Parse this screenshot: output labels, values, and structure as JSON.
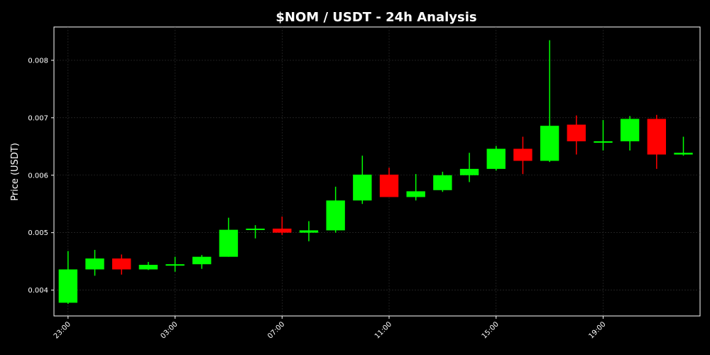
{
  "chart_data": {
    "type": "candlestick",
    "title": "$NOM / USDT - 24h Analysis",
    "xlabel": "",
    "ylabel": "Price (USDT)",
    "ylim": [
      0.00355,
      0.00858
    ],
    "y_ticks": [
      0.004,
      0.005,
      0.006,
      0.007,
      0.008
    ],
    "y_tick_labels": [
      "0.004",
      "0.005",
      "0.006",
      "0.007",
      "0.008"
    ],
    "x_tick_labels": [
      "23:00",
      "03:00",
      "07:00",
      "11:00",
      "15:00",
      "19:00"
    ],
    "x_tick_positions": [
      0,
      4,
      8,
      12,
      16,
      20
    ],
    "grid": true,
    "colors": {
      "background": "#000000",
      "up": "#00ff00",
      "down": "#ff0000",
      "axes": "#ffffff",
      "grid": "#333333"
    },
    "candles": [
      {
        "open": 0.00378,
        "high": 0.00468,
        "low": 0.00376,
        "close": 0.00436
      },
      {
        "open": 0.00436,
        "high": 0.0047,
        "low": 0.00425,
        "close": 0.00455
      },
      {
        "open": 0.00455,
        "high": 0.00462,
        "low": 0.00427,
        "close": 0.00436
      },
      {
        "open": 0.00436,
        "high": 0.00449,
        "low": 0.00435,
        "close": 0.00444
      },
      {
        "open": 0.00443,
        "high": 0.00458,
        "low": 0.00432,
        "close": 0.00445
      },
      {
        "open": 0.00445,
        "high": 0.00461,
        "low": 0.00437,
        "close": 0.00458
      },
      {
        "open": 0.00458,
        "high": 0.00526,
        "low": 0.00458,
        "close": 0.00505
      },
      {
        "open": 0.00505,
        "high": 0.00513,
        "low": 0.0049,
        "close": 0.00507
      },
      {
        "open": 0.00507,
        "high": 0.00528,
        "low": 0.00496,
        "close": 0.005
      },
      {
        "open": 0.005,
        "high": 0.0052,
        "low": 0.00485,
        "close": 0.00504
      },
      {
        "open": 0.00504,
        "high": 0.0058,
        "low": 0.005,
        "close": 0.00556
      },
      {
        "open": 0.00556,
        "high": 0.00634,
        "low": 0.0055,
        "close": 0.00601
      },
      {
        "open": 0.00601,
        "high": 0.00613,
        "low": 0.00562,
        "close": 0.00562
      },
      {
        "open": 0.00562,
        "high": 0.00602,
        "low": 0.00556,
        "close": 0.00572
      },
      {
        "open": 0.00574,
        "high": 0.00606,
        "low": 0.00571,
        "close": 0.006
      },
      {
        "open": 0.006,
        "high": 0.00639,
        "low": 0.00588,
        "close": 0.00611
      },
      {
        "open": 0.00611,
        "high": 0.00651,
        "low": 0.00608,
        "close": 0.00646
      },
      {
        "open": 0.00646,
        "high": 0.00667,
        "low": 0.00602,
        "close": 0.00625
      },
      {
        "open": 0.00625,
        "high": 0.00835,
        "low": 0.00623,
        "close": 0.00686
      },
      {
        "open": 0.00688,
        "high": 0.00704,
        "low": 0.00636,
        "close": 0.00659
      },
      {
        "open": 0.00657,
        "high": 0.00696,
        "low": 0.00643,
        "close": 0.00659
      },
      {
        "open": 0.00659,
        "high": 0.00703,
        "low": 0.00643,
        "close": 0.00698
      },
      {
        "open": 0.00698,
        "high": 0.00705,
        "low": 0.00611,
        "close": 0.00636
      },
      {
        "open": 0.00636,
        "high": 0.00667,
        "low": 0.00634,
        "close": 0.00639
      }
    ]
  }
}
